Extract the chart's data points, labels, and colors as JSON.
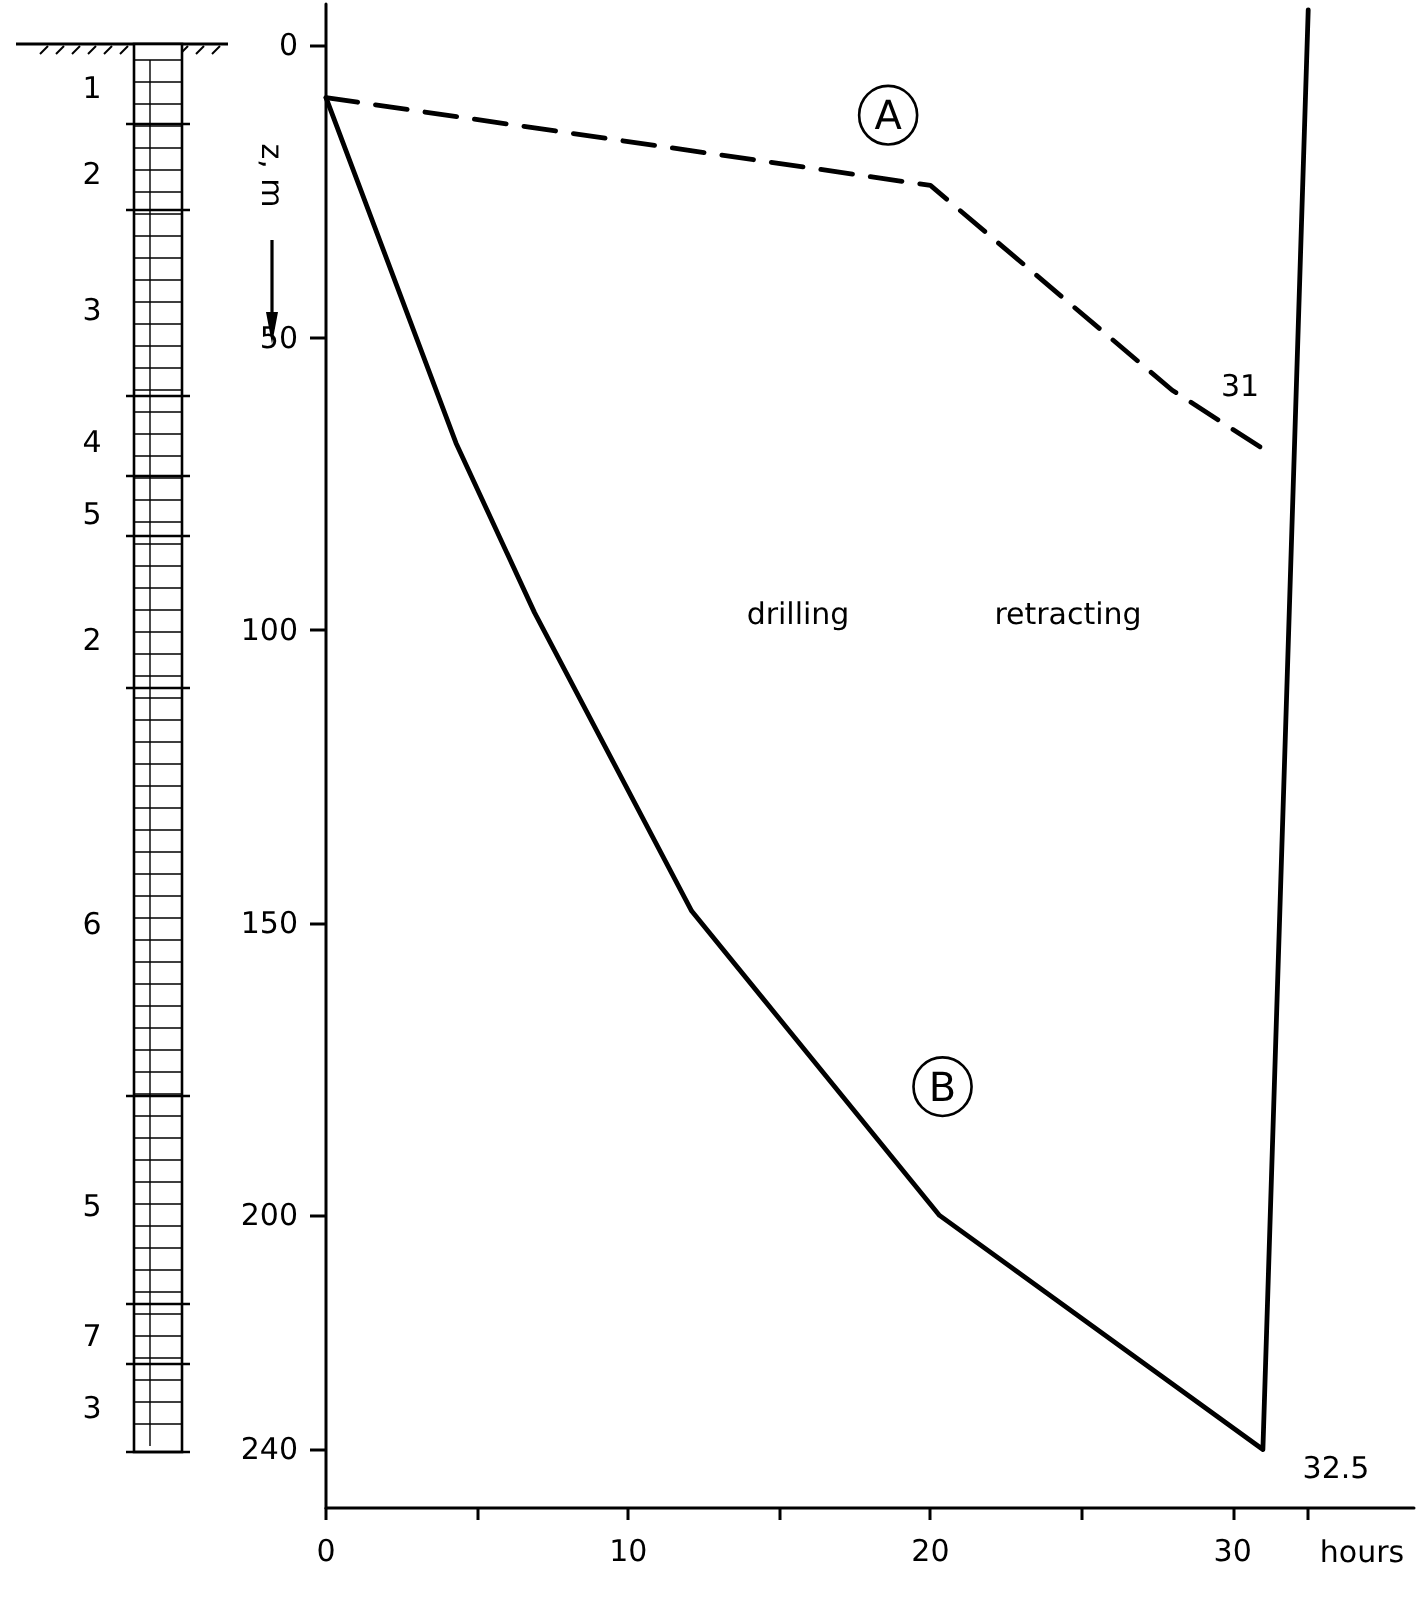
{
  "chart_data": {
    "type": "line",
    "xlabel": "hours",
    "ylabel": "z, m",
    "series": [
      {
        "color": "#000000",
        "line_style": "dashed",
        "x": [
          0,
          20,
          28,
          31
        ],
        "values": [
          9,
          24,
          59,
          69
        ]
      },
      {
        "color": "#000000",
        "line_style": "solid",
        "x": [
          0,
          4.3,
          6.9,
          12.1,
          20.3,
          31,
          32.5
        ],
        "values": [
          9,
          68,
          97,
          148,
          200,
          240,
          -6
        ]
      }
    ],
    "xlim": [
      0,
      36
    ],
    "ylim": [
      250,
      -7
    ],
    "xticks": [
      0,
      {
        "value": 5,
        "label": null
      },
      10,
      {
        "value": 15,
        "label": null
      },
      20,
      {
        "value": 25,
        "label": null
      },
      30,
      {
        "value": 32.5,
        "label": null
      }
    ],
    "yticks": [
      0,
      50,
      100,
      150,
      200,
      240
    ],
    "marker": "none",
    "annotations": [
      {
        "text": "A",
        "x": 18.6,
        "y": 12
      },
      {
        "text": "B",
        "x": 20.4,
        "y": 178
      },
      "drilling",
      "retracting",
      "31",
      "32.5",
      "1",
      "2",
      "3",
      "4",
      "5",
      "2",
      "6",
      "5",
      "7",
      "3"
    ]
  }
}
